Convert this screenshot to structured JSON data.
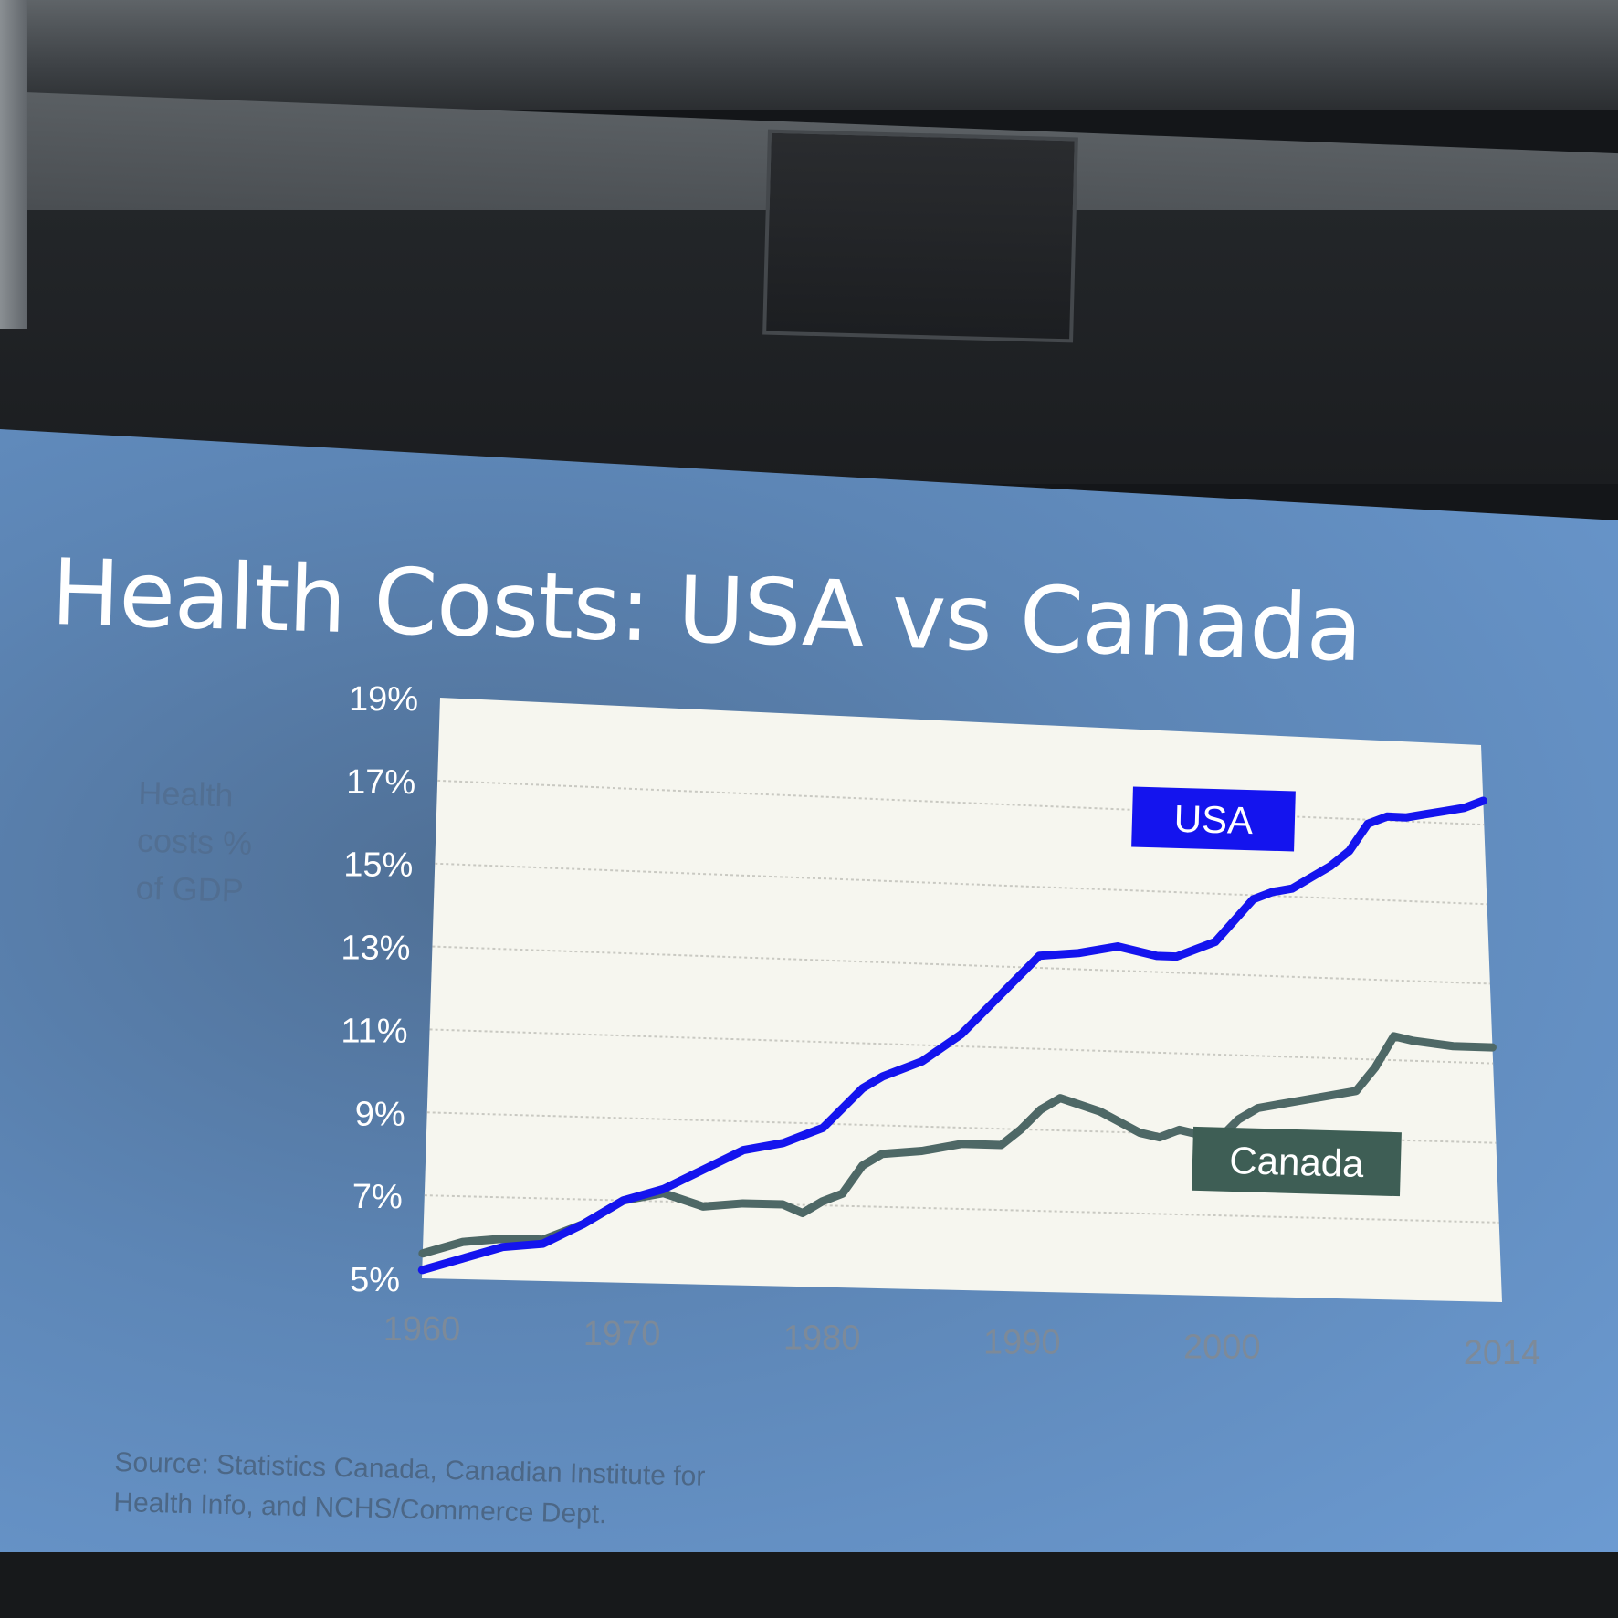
{
  "slide": {
    "title": "Health Costs: USA vs Canada",
    "ylabel_lines": [
      "Health",
      "costs %",
      "of GDP"
    ],
    "source_lines": [
      "Source: Statistics Canada, Canadian Institute for",
      "Health Info, and NCHS/Commerce Dept."
    ]
  },
  "colors": {
    "usa": "#1414ee",
    "canada": "#4e6866",
    "canada_label_bg": "#3e5e55",
    "plot_bg": "#f6f6ef"
  },
  "chart_data": {
    "type": "line",
    "ylim": [
      5,
      19
    ],
    "xlim": [
      1960,
      2014
    ],
    "y_ticks": [
      "5%",
      "7%",
      "9%",
      "11%",
      "13%",
      "15%",
      "17%",
      "19%"
    ],
    "x_ticks": [
      "1960",
      "1970",
      "1980",
      "1990",
      "2000",
      "2014"
    ],
    "grid": true,
    "series": [
      {
        "name": "USA",
        "x": [
          1960,
          1962,
          1964,
          1966,
          1968,
          1970,
          1972,
          1974,
          1976,
          1978,
          1980,
          1982,
          1983,
          1985,
          1987,
          1989,
          1991,
          1993,
          1995,
          1997,
          1998,
          1999,
          2000,
          2002,
          2003,
          2004,
          2005,
          2006,
          2007,
          2008,
          2009,
          2010,
          2011,
          2012,
          2013,
          2014
        ],
        "values": [
          5.2,
          5.5,
          5.8,
          5.9,
          6.4,
          7.0,
          7.3,
          7.8,
          8.3,
          8.5,
          8.9,
          9.9,
          10.2,
          10.6,
          11.3,
          12.3,
          13.3,
          13.4,
          13.6,
          13.4,
          13.4,
          13.6,
          13.8,
          14.9,
          15.1,
          15.2,
          15.5,
          15.8,
          16.2,
          16.9,
          17.1,
          17.1,
          17.2,
          17.3,
          17.4,
          17.6
        ]
      },
      {
        "name": "Canada",
        "x": [
          1960,
          1962,
          1964,
          1966,
          1968,
          1970,
          1972,
          1974,
          1976,
          1978,
          1979,
          1980,
          1981,
          1982,
          1983,
          1985,
          1987,
          1989,
          1990,
          1991,
          1992,
          1994,
          1996,
          1997,
          1998,
          1999,
          2000,
          2001,
          2002,
          2004,
          2006,
          2007,
          2008,
          2009,
          2010,
          2012,
          2014
        ],
        "values": [
          5.6,
          5.9,
          6.0,
          6.0,
          6.4,
          7.0,
          7.2,
          6.9,
          7.0,
          7.0,
          6.8,
          7.1,
          7.3,
          8.0,
          8.3,
          8.4,
          8.6,
          8.6,
          9.0,
          9.5,
          9.8,
          9.5,
          9.0,
          8.9,
          9.1,
          9.0,
          8.9,
          9.4,
          9.7,
          9.9,
          10.1,
          10.2,
          10.8,
          11.6,
          11.5,
          11.4,
          11.4
        ]
      }
    ],
    "annotations": [
      {
        "text": "USA",
        "series": "USA"
      },
      {
        "text": "Canada",
        "series": "Canada"
      }
    ]
  }
}
